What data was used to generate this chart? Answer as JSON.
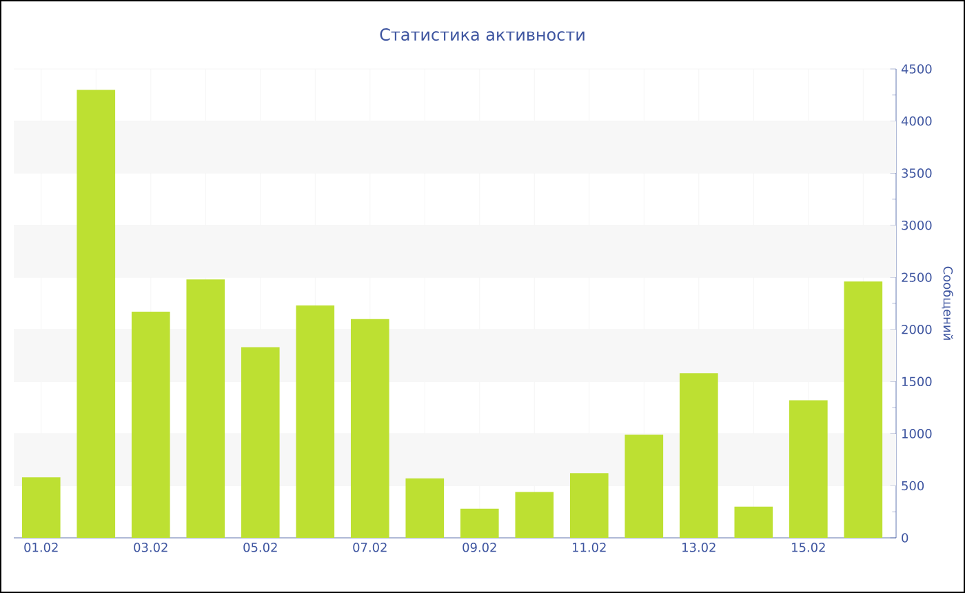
{
  "chart_data": {
    "type": "bar",
    "title": "Статистика активности",
    "ylabel": "Сообщений",
    "categories": [
      "01.02",
      null,
      "03.02",
      null,
      "05.02",
      null,
      "07.02",
      null,
      "09.02",
      null,
      "11.02",
      null,
      "13.02",
      null,
      "15.02",
      null
    ],
    "values": [
      580,
      4300,
      2170,
      2480,
      1830,
      2230,
      2100,
      570,
      280,
      440,
      620,
      990,
      1580,
      300,
      1320,
      2460
    ],
    "color": "#bde032",
    "ylim": [
      0,
      4500
    ],
    "yticks": [
      0,
      500,
      1000,
      1500,
      2000,
      2500,
      3000,
      3500,
      4000,
      4500
    ],
    "grid": true
  }
}
